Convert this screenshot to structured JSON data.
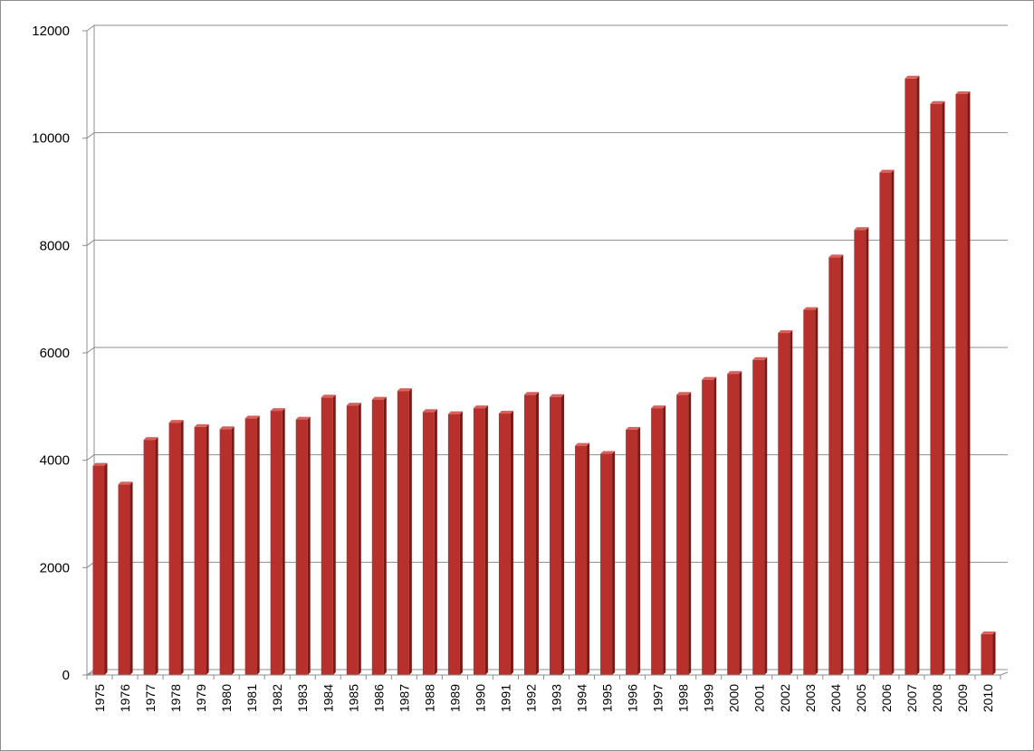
{
  "chart_data": {
    "type": "bar",
    "title": "",
    "xlabel": "",
    "ylabel": "",
    "ylim": [
      0,
      12000
    ],
    "yticks": [
      0,
      2000,
      4000,
      6000,
      8000,
      10000,
      12000
    ],
    "grid": true,
    "legend": "none",
    "categories": [
      "1975",
      "1976",
      "1977",
      "1978",
      "1979",
      "1980",
      "1981",
      "1982",
      "1983",
      "1984",
      "1985",
      "1986",
      "1987",
      "1988",
      "1989",
      "1990",
      "1991",
      "1992",
      "1993",
      "1994",
      "1995",
      "1996",
      "1997",
      "1998",
      "1999",
      "2000",
      "2001",
      "2002",
      "2003",
      "2004",
      "2005",
      "2006",
      "2007",
      "2008",
      "2009",
      "2010"
    ],
    "values": [
      3900,
      3550,
      4380,
      4700,
      4620,
      4580,
      4780,
      4920,
      4760,
      5170,
      5020,
      5130,
      5290,
      4900,
      4860,
      4970,
      4870,
      5220,
      5180,
      4270,
      4120,
      4570,
      4970,
      5220,
      5500,
      5610,
      5870,
      6370,
      6800,
      7780,
      8290,
      9360,
      11110,
      10640,
      10820,
      760
    ],
    "colors": {
      "bar_front": "#b8302c",
      "bar_side": "#7a1a17",
      "bar_top": "#d9605b",
      "grid": "#8c8c8c"
    }
  }
}
